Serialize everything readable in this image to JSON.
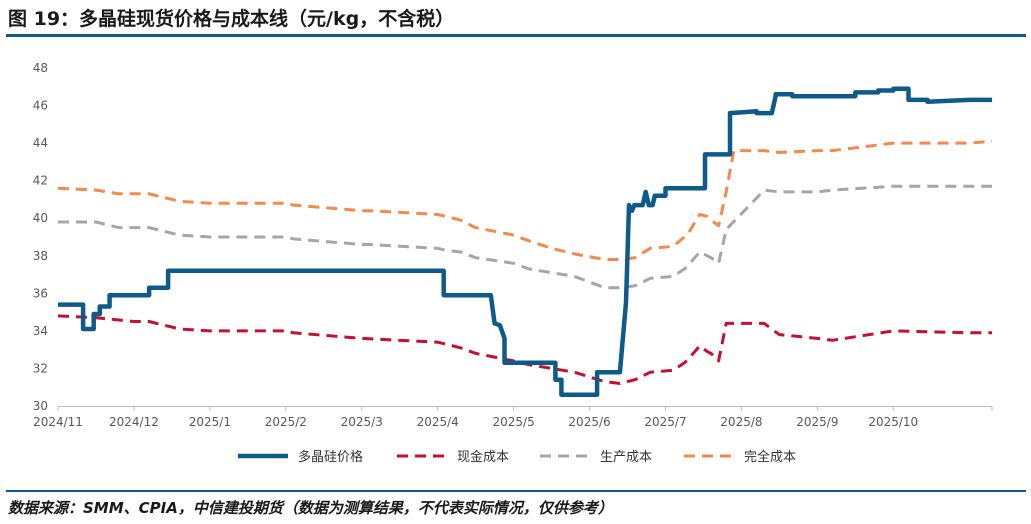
{
  "header": {
    "title": "图 19：多晶硅现货价格与成本线（元/kg，不含税）"
  },
  "footer": {
    "source": "数据来源：SMM、CPIA，中信建投期货（数据为测算结果，不代表实际情况，仅供参考）"
  },
  "chart_data": {
    "type": "line",
    "title": "多晶硅现货价格与成本线（元/kg，不含税）",
    "xlabel": "",
    "ylabel": "元/kg",
    "ylim": [
      30,
      48
    ],
    "y_ticks": [
      30,
      32,
      34,
      36,
      38,
      40,
      42,
      44,
      46,
      48
    ],
    "x_range": [
      0,
      12.3
    ],
    "categories": [
      "2024/11",
      "2024/12",
      "2025/1",
      "2025/2",
      "2025/3",
      "2025/4",
      "2025/5",
      "2025/6",
      "2025/7",
      "2025/8",
      "2025/9",
      "2025/10"
    ],
    "legend_position": "bottom",
    "series": [
      {
        "name": "多晶硅价格",
        "color": "#0e5a8a",
        "style": "solid",
        "x": [
          0,
          0.33,
          0.33,
          0.47,
          0.47,
          0.55,
          0.55,
          0.68,
          0.68,
          1.2,
          1.2,
          1.4,
          1.4,
          1.45,
          1.45,
          2.0,
          3.0,
          4.0,
          5.0,
          5.08,
          5.08,
          5.7,
          5.7,
          5.75,
          5.82,
          5.88,
          5.88,
          6.55,
          6.55,
          6.63,
          6.63,
          6.77,
          6.77,
          7.1,
          7.1,
          7.4,
          7.48,
          7.52,
          7.56,
          7.59,
          7.65,
          7.7,
          7.74,
          7.78,
          7.83,
          7.86,
          7.9,
          8.0,
          8.0,
          8.2,
          8.2,
          8.52,
          8.52,
          8.85,
          8.85,
          9.2,
          9.2,
          9.3,
          9.4,
          9.45,
          9.45,
          9.67,
          9.67,
          9.75,
          9.82,
          9.9,
          9.9,
          10.5,
          10.5,
          10.8,
          10.8,
          11.0,
          11.0,
          11.2,
          11.2,
          11.45,
          11.45,
          12.0,
          12.3
        ],
        "y": [
          35.4,
          35.4,
          34.1,
          34.1,
          34.9,
          34.9,
          35.3,
          35.3,
          35.9,
          35.9,
          36.3,
          36.3,
          36.3,
          36.3,
          37.2,
          37.2,
          37.2,
          37.2,
          37.2,
          37.2,
          35.9,
          35.9,
          35.9,
          34.4,
          34.3,
          33.6,
          32.3,
          32.3,
          31.4,
          31.4,
          30.6,
          30.6,
          30.6,
          30.6,
          31.8,
          31.8,
          35.5,
          40.7,
          40.4,
          40.7,
          40.7,
          40.7,
          41.4,
          40.7,
          40.7,
          41.2,
          41.2,
          41.2,
          41.6,
          41.6,
          41.6,
          41.6,
          43.4,
          43.4,
          45.6,
          45.7,
          45.6,
          45.6,
          45.6,
          46.5,
          46.6,
          46.6,
          46.5,
          46.5,
          46.5,
          46.5,
          46.5,
          46.5,
          46.7,
          46.7,
          46.8,
          46.8,
          46.9,
          46.9,
          46.3,
          46.3,
          46.2,
          46.3,
          46.3
        ]
      },
      {
        "name": "现金成本",
        "color": "#c8102e",
        "style": "dashed",
        "x": [
          0,
          0.5,
          1.0,
          1.2,
          1.3,
          1.5,
          1.6,
          2.0,
          3.0,
          3.1,
          4.0,
          5.0,
          5.1,
          5.3,
          5.5,
          6.0,
          6.2,
          6.5,
          6.8,
          7.2,
          7.4,
          7.6,
          7.8,
          8.1,
          8.25,
          8.3,
          8.45,
          8.55,
          8.6,
          8.7,
          8.8,
          9.3,
          9.5,
          10.0,
          10.2,
          11.0,
          12.0,
          12.3
        ],
        "y": [
          34.8,
          34.7,
          34.5,
          34.5,
          34.4,
          34.2,
          34.1,
          34.0,
          34.0,
          33.9,
          33.6,
          33.4,
          33.3,
          33.1,
          32.8,
          32.4,
          32.2,
          32.0,
          31.8,
          31.3,
          31.2,
          31.4,
          31.8,
          31.9,
          32.3,
          32.5,
          33.2,
          32.9,
          32.8,
          32.4,
          34.4,
          34.4,
          33.8,
          33.6,
          33.5,
          34.0,
          33.9,
          33.9
        ]
      },
      {
        "name": "生产成本",
        "color": "#a6a6a6",
        "style": "dashed",
        "x": [
          0,
          0.5,
          0.8,
          1.0,
          1.2,
          1.3,
          1.5,
          1.6,
          2.0,
          3.0,
          3.1,
          4.0,
          4.1,
          5.0,
          5.1,
          5.3,
          5.5,
          6.0,
          6.2,
          6.5,
          6.8,
          7.2,
          7.4,
          7.6,
          7.8,
          8.1,
          8.25,
          8.3,
          8.45,
          8.55,
          8.6,
          8.7,
          8.8,
          9.3,
          9.5,
          10.0,
          10.2,
          11.0,
          12.0,
          12.3
        ],
        "y": [
          39.8,
          39.8,
          39.5,
          39.5,
          39.5,
          39.4,
          39.2,
          39.1,
          39.0,
          39.0,
          38.9,
          38.6,
          38.6,
          38.4,
          38.3,
          38.2,
          37.9,
          37.6,
          37.3,
          37.1,
          36.9,
          36.3,
          36.3,
          36.4,
          36.8,
          36.9,
          37.3,
          37.5,
          38.2,
          38.0,
          37.9,
          37.6,
          39.4,
          41.5,
          41.4,
          41.4,
          41.5,
          41.7,
          41.7,
          41.7
        ]
      },
      {
        "name": "完全成本",
        "color": "#f4894b",
        "style": "dashed",
        "x": [
          0,
          0.5,
          0.8,
          1.0,
          1.2,
          1.3,
          1.5,
          1.6,
          2.0,
          3.0,
          3.1,
          4.0,
          4.1,
          5.0,
          5.1,
          5.3,
          5.5,
          6.0,
          6.2,
          6.5,
          6.8,
          7.2,
          7.4,
          7.6,
          7.8,
          8.1,
          8.25,
          8.3,
          8.45,
          8.55,
          8.6,
          8.7,
          8.8,
          8.9,
          9.3,
          9.5,
          10.0,
          10.2,
          11.0,
          12.0,
          12.3
        ],
        "y": [
          41.6,
          41.5,
          41.3,
          41.3,
          41.3,
          41.2,
          41.0,
          40.9,
          40.8,
          40.8,
          40.7,
          40.4,
          40.4,
          40.2,
          40.1,
          39.9,
          39.5,
          39.1,
          38.8,
          38.4,
          38.1,
          37.8,
          37.8,
          37.9,
          38.4,
          38.5,
          39.0,
          39.2,
          40.2,
          40.1,
          39.9,
          39.6,
          41.4,
          43.6,
          43.6,
          43.5,
          43.6,
          43.6,
          44.0,
          44.0,
          44.1
        ]
      }
    ]
  }
}
